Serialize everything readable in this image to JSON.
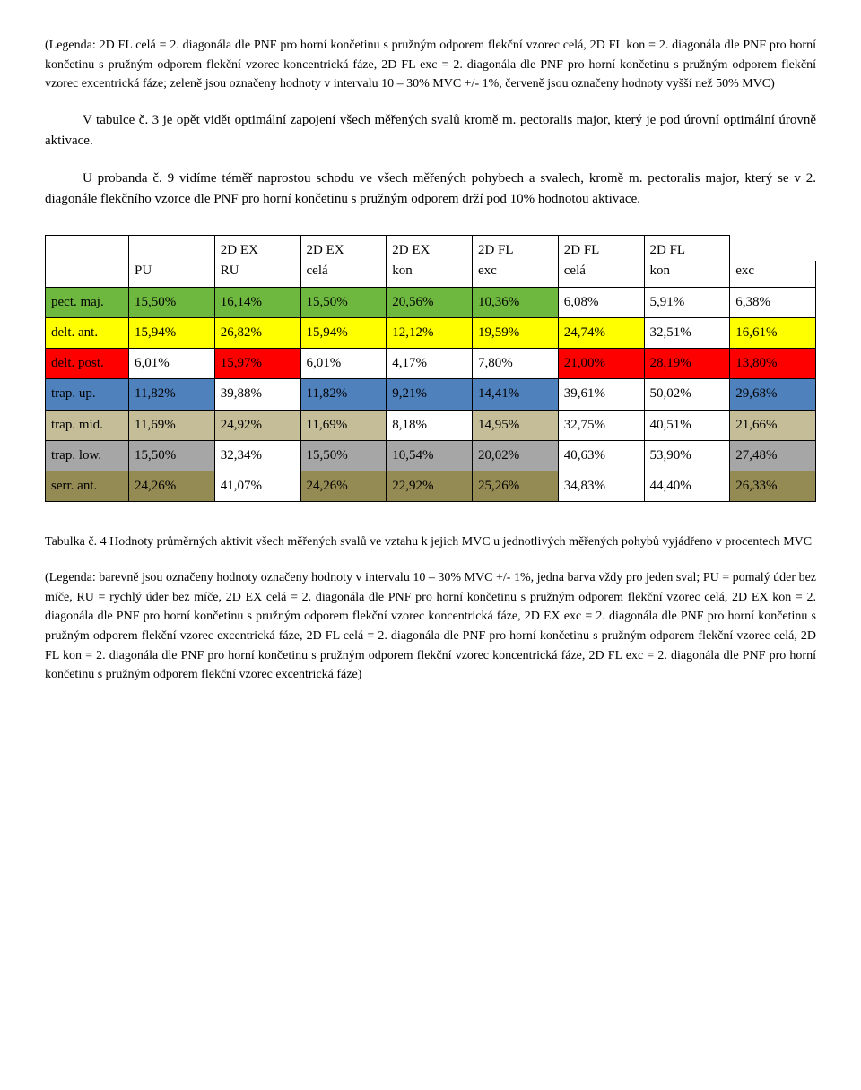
{
  "legend_top": "(Legenda: 2D FL celá = 2. diagonála dle PNF pro horní končetinu s pružným odporem flekční vzorec celá, 2D FL kon = 2. diagonála dle PNF pro horní končetinu s pružným odporem flekční vzorec koncentrická fáze, 2D FL exc = 2. diagonála dle PNF pro horní končetinu s pružným odporem flekční vzorec excentrická fáze; zeleně jsou označeny hodnoty v intervalu 10 – 30% MVC +/- 1%, červeně jsou označeny hodnoty vyšší než 50% MVC)",
  "p1": "V tabulce č. 3 je opět vidět optimální zapojení všech měřených svalů kromě m. pectoralis major, který je pod úrovní optimální úrovně aktivace.",
  "p2": "U probanda č. 9 vidíme téměř naprostou schodu ve všech měřených pohybech a svalech, kromě m. pectoralis major, který se v 2. diagonále flekčního vzorce dle PNF pro horní končetinu s pružným odporem drží pod 10% hodnotou aktivace.",
  "table": {
    "header_top": [
      "",
      "",
      "2D    EX",
      "2D    EX",
      "2D    EX",
      "2D     FL",
      "2D     FL",
      "2D     FL"
    ],
    "header_bot": [
      "",
      "PU",
      "RU",
      "celá",
      "kon",
      "exc",
      "celá",
      "kon",
      "exc"
    ],
    "rows": [
      {
        "label": "pect. maj.",
        "vals": [
          "15,50%",
          "16,14%",
          "15,50%",
          "20,56%",
          "10,36%",
          "6,08%",
          "5,91%",
          "6,38%"
        ]
      },
      {
        "label": "delt. ant.",
        "vals": [
          "15,94%",
          "26,82%",
          "15,94%",
          "12,12%",
          "19,59%",
          "24,74%",
          "32,51%",
          "16,61%"
        ]
      },
      {
        "label": "delt. post.",
        "vals": [
          "6,01%",
          "15,97%",
          "6,01%",
          "4,17%",
          "7,80%",
          "21,00%",
          "28,19%",
          "13,80%"
        ]
      },
      {
        "label": "trap. up.",
        "vals": [
          "11,82%",
          "39,88%",
          "11,82%",
          "9,21%",
          "14,41%",
          "39,61%",
          "50,02%",
          "29,68%"
        ]
      },
      {
        "label": "trap. mid.",
        "vals": [
          "11,69%",
          "24,92%",
          "11,69%",
          "8,18%",
          "14,95%",
          "32,75%",
          "40,51%",
          "21,66%"
        ]
      },
      {
        "label": "trap. low.",
        "vals": [
          "15,50%",
          "32,34%",
          "15,50%",
          "10,54%",
          "20,02%",
          "40,63%",
          "53,90%",
          "27,48%"
        ]
      },
      {
        "label": "serr. ant.",
        "vals": [
          "24,26%",
          "41,07%",
          "24,26%",
          "22,92%",
          "25,26%",
          "34,83%",
          "44,40%",
          "26,33%"
        ]
      }
    ],
    "colors": {
      "green": "#6fb840",
      "yellow": "#ffff00",
      "red": "#ff0000",
      "blue": "#4f81bd",
      "tan": "#c4bd97",
      "gray": "#a6a6a6",
      "olive": "#948a54",
      "none": "#ffffff"
    },
    "cell_colors": [
      [
        "green",
        "green",
        "green",
        "green",
        "green",
        "green",
        "none",
        "none",
        "none"
      ],
      [
        "yellow",
        "yellow",
        "yellow",
        "yellow",
        "yellow",
        "yellow",
        "yellow",
        "none",
        "yellow"
      ],
      [
        "red",
        "none",
        "red",
        "none",
        "none",
        "none",
        "red",
        "red",
        "red"
      ],
      [
        "blue",
        "blue",
        "none",
        "blue",
        "blue",
        "blue",
        "none",
        "none",
        "blue"
      ],
      [
        "tan",
        "tan",
        "tan",
        "tan",
        "none",
        "tan",
        "none",
        "none",
        "tan"
      ],
      [
        "gray",
        "gray",
        "none",
        "gray",
        "gray",
        "gray",
        "none",
        "none",
        "gray"
      ],
      [
        "olive",
        "olive",
        "none",
        "olive",
        "olive",
        "olive",
        "none",
        "none",
        "olive"
      ]
    ]
  },
  "caption": "Tabulka č. 4 Hodnoty průměrných aktivit všech měřených svalů ve vztahu k jejich MVC u jednotlivých měřených pohybů vyjádřeno v procentech MVC",
  "legend_bot": "(Legenda: barevně jsou označeny hodnoty označeny hodnoty v intervalu 10 – 30%  MVC +/- 1%, jedna barva vždy pro jeden sval; PU = pomalý úder bez míče, RU = rychlý úder bez míče, 2D EX celá = 2. diagonála dle PNF pro horní končetinu s pružným odporem flekční vzorec celá, 2D EX kon = 2. diagonála dle PNF pro horní končetinu s pružným odporem flekční vzorec koncentrická fáze, 2D EX exc = 2. diagonála dle PNF pro horní končetinu s pružným odporem flekční vzorec excentrická fáze, 2D FL celá = 2. diagonála dle PNF pro horní končetinu s pružným odporem flekční vzorec celá, 2D FL kon = 2. diagonála dle PNF pro horní končetinu s pružným odporem flekční vzorec koncentrická fáze, 2D FL exc = 2. diagonála dle PNF pro horní končetinu s pružným odporem flekční vzorec excentrická fáze)"
}
